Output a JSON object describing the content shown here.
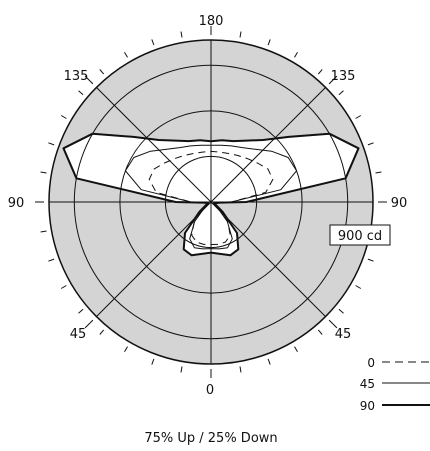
{
  "chart_data": {
    "type": "polar",
    "caption": "75% Up / 25% Down",
    "scale_label": "900 cd",
    "colors": {
      "disc": "#d4d4d4",
      "lobe_fill": "#ffffff",
      "line": "#111111"
    },
    "angle_labels": [
      "180",
      "135",
      "135",
      "90",
      "90",
      "45",
      "45",
      "0"
    ],
    "rings_cd": [
      450,
      900,
      1350
    ],
    "r_max_cd": 1600,
    "legend": [
      {
        "label": "0",
        "style": "dashed"
      },
      {
        "label": "45",
        "style": "thin"
      },
      {
        "label": "90",
        "style": "thick"
      }
    ],
    "series": [
      {
        "name": "90",
        "angles": [
          0,
          10,
          20,
          30,
          40,
          50,
          60,
          70,
          80,
          90,
          100,
          110,
          120,
          130,
          140,
          150,
          160,
          170,
          180
        ],
        "values": [
          500,
          520,
          560,
          540,
          400,
          150,
          50,
          30,
          40,
          350,
          1350,
          1550,
          1350,
          1000,
          800,
          700,
          640,
          620,
          600
        ]
      },
      {
        "name": "45",
        "angles": [
          0,
          10,
          20,
          30,
          40,
          50,
          60,
          70,
          80,
          90,
          100,
          110,
          120,
          130,
          140,
          150,
          160,
          170,
          180
        ],
        "values": [
          460,
          470,
          480,
          420,
          250,
          80,
          30,
          40,
          60,
          200,
          700,
          900,
          880,
          780,
          680,
          620,
          590,
          570,
          560
        ]
      },
      {
        "name": "0",
        "angles": [
          0,
          10,
          20,
          30,
          40,
          50,
          60,
          70,
          80,
          90,
          100,
          110,
          120,
          130,
          140,
          150,
          160,
          170,
          180
        ],
        "values": [
          420,
          425,
          420,
          380,
          260,
          100,
          40,
          50,
          70,
          200,
          550,
          650,
          650,
          600,
          560,
          530,
          510,
          500,
          500
        ]
      }
    ]
  }
}
